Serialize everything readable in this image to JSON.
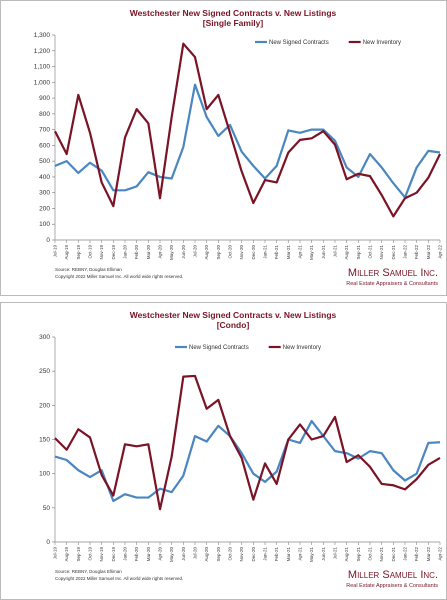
{
  "chart_data": [
    {
      "type": "line",
      "title": "Westchester New Signed Contracts v. New Listings",
      "subtitle": "[Single Family]",
      "categories": [
        "Jul-19",
        "Aug-19",
        "Sep-19",
        "Oct-19",
        "Nov-19",
        "Dec-19",
        "Jan-20",
        "Feb-20",
        "Mar-20",
        "Apr-20",
        "May-20",
        "Jun-20",
        "Jul-20",
        "Aug-20",
        "Sep-20",
        "Oct-20",
        "Nov-20",
        "Dec-20",
        "Jan-21",
        "Feb-21",
        "Mar-21",
        "Apr-21",
        "May-21",
        "Jun-21",
        "Jul-21",
        "Aug-21",
        "Sep-21",
        "Oct-21",
        "Nov-21",
        "Dec-21",
        "Jan-22",
        "Feb-22",
        "Mar-22",
        "Apr-22"
      ],
      "series": [
        {
          "name": "New Signed Contracts",
          "color": "#4a86c0",
          "values": [
            470,
            500,
            425,
            490,
            440,
            315,
            315,
            340,
            430,
            400,
            390,
            590,
            985,
            780,
            660,
            730,
            560,
            470,
            390,
            470,
            695,
            680,
            700,
            700,
            630,
            460,
            400,
            545,
            460,
            360,
            270,
            460,
            565,
            555
          ]
        },
        {
          "name": "New Inventory",
          "color": "#7a1325",
          "values": [
            690,
            545,
            920,
            680,
            365,
            215,
            650,
            830,
            740,
            265,
            780,
            1245,
            1160,
            830,
            920,
            680,
            435,
            235,
            380,
            365,
            555,
            635,
            645,
            690,
            605,
            385,
            420,
            405,
            285,
            150,
            265,
            300,
            395,
            545
          ]
        }
      ],
      "ylim": [
        0,
        1300
      ],
      "yticks": [
        0,
        100,
        200,
        300,
        400,
        500,
        600,
        700,
        800,
        900,
        {
          "value": 1000,
          "label": "1,000"
        },
        {
          "value": 1100,
          "label": "1,100"
        },
        {
          "value": 1200,
          "label": "1,200"
        },
        {
          "value": 1300,
          "label": "1,300"
        }
      ],
      "legend": "top",
      "grid": false,
      "source": "Source: REBNY, Douglas Elliman",
      "copyright": "Copyright 2022 Miller Samuel Inc. All world wide rights reserved.",
      "brand": "Miller Samuel Inc.",
      "tagline": "Real Estate Appraisers & Consultants"
    },
    {
      "type": "line",
      "title": "Westchester New Signed Contracts v. New Listings",
      "subtitle": "[Condo]",
      "categories": [
        "Jul-19",
        "Aug-19",
        "Sep-19",
        "Oct-19",
        "Nov-19",
        "Dec-19",
        "Jan-20",
        "Feb-20",
        "Mar-20",
        "Apr-20",
        "May-20",
        "Jun-20",
        "Jul-20",
        "Aug-20",
        "Sep-20",
        "Oct-20",
        "Nov-20",
        "Dec-20",
        "Jan-21",
        "Feb-21",
        "Mar-21",
        "Apr-21",
        "May-21",
        "Jun-21",
        "Jul-21",
        "Aug-21",
        "Sep-21",
        "Oct-21",
        "Nov-21",
        "Dec-21",
        "Jan-22",
        "Feb-22",
        "Mar-22",
        "Apr-22"
      ],
      "series": [
        {
          "name": "New Signed Contracts",
          "color": "#4a86c0",
          "values": [
            125,
            120,
            105,
            95,
            105,
            60,
            70,
            65,
            65,
            78,
            73,
            97,
            155,
            147,
            170,
            155,
            130,
            100,
            88,
            103,
            150,
            145,
            177,
            155,
            133,
            130,
            122,
            133,
            130,
            105,
            90,
            100,
            145,
            146
          ]
        },
        {
          "name": "New Inventory",
          "color": "#7a1325",
          "values": [
            152,
            135,
            165,
            153,
            98,
            68,
            143,
            140,
            143,
            48,
            125,
            242,
            243,
            195,
            208,
            155,
            123,
            62,
            115,
            85,
            150,
            172,
            150,
            155,
            183,
            117,
            127,
            110,
            85,
            83,
            77,
            92,
            113,
            123
          ]
        }
      ],
      "ylim": [
        0,
        300
      ],
      "yticks": [
        0,
        50,
        100,
        150,
        200,
        250,
        300
      ],
      "legend": "top",
      "grid": false,
      "source": "Source: REBNY, Douglas Elliman",
      "copyright": "Copyright 2022 Miller Samuel Inc. All world wide rights reserved.",
      "brand": "Miller Samuel Inc.",
      "tagline": "Real Estate Appraisers & Consultants"
    }
  ]
}
